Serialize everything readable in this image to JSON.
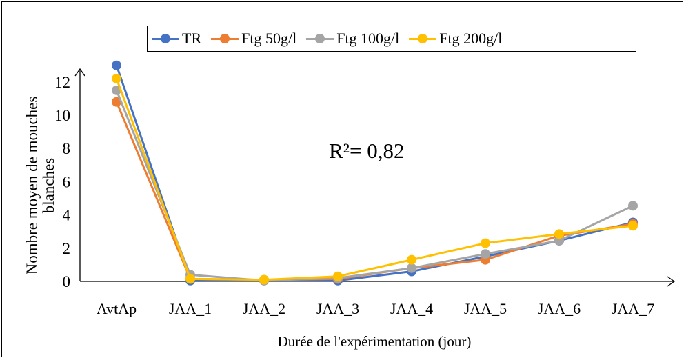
{
  "chart_data": {
    "type": "line",
    "categories": [
      "AvtAp",
      "JAA_1",
      "JAA_2",
      "JAA_3",
      "JAA_4",
      "JAA_5",
      "JAA_6",
      "JAA_7"
    ],
    "series": [
      {
        "name": "TR",
        "color": "#4472C4",
        "values": [
          13.0,
          0.05,
          0.05,
          0.05,
          0.6,
          1.5,
          2.45,
          3.55
        ]
      },
      {
        "name": "Ftg 50g/l",
        "color": "#ED7D31",
        "values": [
          10.8,
          0.15,
          0.1,
          0.15,
          0.8,
          1.3,
          2.75,
          3.45
        ]
      },
      {
        "name": "Ftg 100g/l",
        "color": "#A5A5A5",
        "values": [
          11.5,
          0.4,
          0.05,
          0.2,
          0.8,
          1.65,
          2.45,
          4.55
        ]
      },
      {
        "name": "Ftg 200g/l",
        "color": "#FFC000",
        "values": [
          12.2,
          0.15,
          0.1,
          0.3,
          1.3,
          2.3,
          2.85,
          3.35
        ]
      }
    ],
    "yticks": [
      0,
      2,
      4,
      6,
      8,
      10,
      12
    ],
    "ytick_labels": [
      "0",
      "2",
      "4",
      "6",
      "8",
      "10",
      "12"
    ],
    "ylim": [
      0,
      14
    ],
    "xlabel": "Durée de l'expérimentation (jour)",
    "ylabel": "Nombre moyen de mouches blanches",
    "annotation": "R²= 0,82",
    "grid": false,
    "legend_position": "top"
  }
}
